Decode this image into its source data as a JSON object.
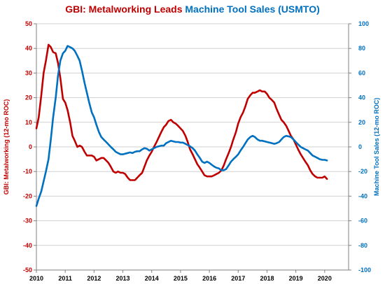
{
  "colors": {
    "left_series": "#C00000",
    "right_series": "#0070C0",
    "grid": "#d0d0d0",
    "axis": "#808080",
    "x_ticks": "#000000"
  },
  "chart_data": {
    "type": "line",
    "title_parts": [
      {
        "text": "GBI: Metalworking",
        "series": "left"
      },
      {
        "text": " Leads ",
        "series": "left"
      },
      {
        "text": "Machine Tool Sales (USMTO)",
        "series": "right"
      }
    ],
    "ylabel_left": "GBI: Metalworking (12-mo ROC)",
    "ylabel_right": "Machine Tool Sales (12-mo ROC)",
    "xlim": [
      2010,
      2020.83
    ],
    "x_ticks": [
      2010,
      2011,
      2012,
      2013,
      2014,
      2015,
      2016,
      2017,
      2018,
      2019,
      2020
    ],
    "ylim_left": [
      -50,
      50
    ],
    "y_ticks_left": [
      -50,
      -40,
      -30,
      -20,
      -10,
      0,
      10,
      20,
      30,
      40,
      50
    ],
    "ylim_right": [
      -100,
      100
    ],
    "y_ticks_right": [
      -100,
      -80,
      -60,
      -40,
      -20,
      0,
      20,
      40,
      60,
      80,
      100
    ],
    "grid": "horizontal",
    "series": [
      {
        "axis": "left",
        "points": [
          [
            2010.0,
            7.5
          ],
          [
            2010.08,
            12
          ],
          [
            2010.17,
            21
          ],
          [
            2010.25,
            30
          ],
          [
            2010.33,
            35
          ],
          [
            2010.42,
            41.5
          ],
          [
            2010.5,
            40.5
          ],
          [
            2010.58,
            38.5
          ],
          [
            2010.67,
            38
          ],
          [
            2010.75,
            34
          ],
          [
            2010.83,
            28
          ],
          [
            2010.92,
            19.5
          ],
          [
            2011.0,
            18
          ],
          [
            2011.08,
            15
          ],
          [
            2011.17,
            10
          ],
          [
            2011.25,
            4.5
          ],
          [
            2011.33,
            2.5
          ],
          [
            2011.42,
            0
          ],
          [
            2011.5,
            0.5
          ],
          [
            2011.58,
            0
          ],
          [
            2011.67,
            -2
          ],
          [
            2011.75,
            -3.5
          ],
          [
            2011.83,
            -3.5
          ],
          [
            2011.92,
            -3.5
          ],
          [
            2012.0,
            -4
          ],
          [
            2012.08,
            -5.5
          ],
          [
            2012.17,
            -5
          ],
          [
            2012.25,
            -4.5
          ],
          [
            2012.33,
            -4.5
          ],
          [
            2012.42,
            -5.5
          ],
          [
            2012.5,
            -6.5
          ],
          [
            2012.58,
            -8
          ],
          [
            2012.67,
            -10
          ],
          [
            2012.75,
            -10.5
          ],
          [
            2012.83,
            -10
          ],
          [
            2012.92,
            -10.5
          ],
          [
            2013.0,
            -10.5
          ],
          [
            2013.08,
            -11
          ],
          [
            2013.17,
            -12.5
          ],
          [
            2013.25,
            -13.5
          ],
          [
            2013.33,
            -13.5
          ],
          [
            2013.42,
            -13.5
          ],
          [
            2013.5,
            -12.5
          ],
          [
            2013.58,
            -11.5
          ],
          [
            2013.67,
            -10.5
          ],
          [
            2013.75,
            -8
          ],
          [
            2013.83,
            -5.5
          ],
          [
            2013.92,
            -3.5
          ],
          [
            2014.0,
            -2
          ],
          [
            2014.08,
            0
          ],
          [
            2014.17,
            2
          ],
          [
            2014.25,
            4
          ],
          [
            2014.33,
            6
          ],
          [
            2014.42,
            8
          ],
          [
            2014.5,
            9
          ],
          [
            2014.58,
            10.5
          ],
          [
            2014.67,
            11
          ],
          [
            2014.75,
            10
          ],
          [
            2014.83,
            9.5
          ],
          [
            2014.92,
            8.5
          ],
          [
            2015.0,
            7.5
          ],
          [
            2015.08,
            6.5
          ],
          [
            2015.17,
            4.5
          ],
          [
            2015.25,
            2
          ],
          [
            2015.33,
            -1
          ],
          [
            2015.42,
            -3
          ],
          [
            2015.5,
            -5
          ],
          [
            2015.58,
            -7
          ],
          [
            2015.67,
            -8.5
          ],
          [
            2015.75,
            -10
          ],
          [
            2015.83,
            -11.5
          ],
          [
            2015.92,
            -12
          ],
          [
            2016.0,
            -12
          ],
          [
            2016.08,
            -12
          ],
          [
            2016.17,
            -11.5
          ],
          [
            2016.25,
            -11
          ],
          [
            2016.33,
            -10.5
          ],
          [
            2016.42,
            -9.5
          ],
          [
            2016.5,
            -7.5
          ],
          [
            2016.58,
            -5
          ],
          [
            2016.67,
            -2.5
          ],
          [
            2016.75,
            0
          ],
          [
            2016.83,
            3
          ],
          [
            2016.92,
            6
          ],
          [
            2017.0,
            9.5
          ],
          [
            2017.08,
            12
          ],
          [
            2017.17,
            14
          ],
          [
            2017.25,
            16.5
          ],
          [
            2017.33,
            19.5
          ],
          [
            2017.42,
            21
          ],
          [
            2017.5,
            22
          ],
          [
            2017.58,
            22
          ],
          [
            2017.67,
            22.5
          ],
          [
            2017.75,
            23
          ],
          [
            2017.83,
            22.5
          ],
          [
            2017.92,
            22.5
          ],
          [
            2018.0,
            21.5
          ],
          [
            2018.08,
            20
          ],
          [
            2018.17,
            19
          ],
          [
            2018.25,
            18
          ],
          [
            2018.33,
            15.5
          ],
          [
            2018.42,
            13
          ],
          [
            2018.5,
            11
          ],
          [
            2018.58,
            10
          ],
          [
            2018.67,
            8.5
          ],
          [
            2018.75,
            6.5
          ],
          [
            2018.83,
            4.5
          ],
          [
            2018.92,
            3
          ],
          [
            2019.0,
            1
          ],
          [
            2019.08,
            -1
          ],
          [
            2019.17,
            -3
          ],
          [
            2019.25,
            -4.5
          ],
          [
            2019.33,
            -6
          ],
          [
            2019.42,
            -7.5
          ],
          [
            2019.5,
            -9.5
          ],
          [
            2019.58,
            -11
          ],
          [
            2019.67,
            -12
          ],
          [
            2019.75,
            -12.5
          ],
          [
            2019.83,
            -12.5
          ],
          [
            2019.92,
            -12.5
          ],
          [
            2020.0,
            -12
          ],
          [
            2020.08,
            -13
          ]
        ]
      },
      {
        "axis": "right",
        "points": [
          [
            2010.0,
            -48
          ],
          [
            2010.08,
            -42
          ],
          [
            2010.17,
            -36
          ],
          [
            2010.25,
            -28
          ],
          [
            2010.33,
            -20
          ],
          [
            2010.42,
            -10
          ],
          [
            2010.5,
            6
          ],
          [
            2010.58,
            24
          ],
          [
            2010.67,
            40
          ],
          [
            2010.75,
            58
          ],
          [
            2010.83,
            70
          ],
          [
            2010.92,
            76
          ],
          [
            2011.0,
            78
          ],
          [
            2011.08,
            82
          ],
          [
            2011.17,
            81
          ],
          [
            2011.25,
            80
          ],
          [
            2011.33,
            78
          ],
          [
            2011.42,
            74
          ],
          [
            2011.5,
            70
          ],
          [
            2011.58,
            62
          ],
          [
            2011.67,
            52
          ],
          [
            2011.75,
            44
          ],
          [
            2011.83,
            36
          ],
          [
            2011.92,
            28
          ],
          [
            2012.0,
            24
          ],
          [
            2012.08,
            18
          ],
          [
            2012.17,
            12
          ],
          [
            2012.25,
            8
          ],
          [
            2012.33,
            6
          ],
          [
            2012.42,
            4
          ],
          [
            2012.5,
            2
          ],
          [
            2012.58,
            0
          ],
          [
            2012.67,
            -2
          ],
          [
            2012.75,
            -4
          ],
          [
            2012.83,
            -5
          ],
          [
            2012.92,
            -6
          ],
          [
            2013.0,
            -6
          ],
          [
            2013.08,
            -5.5
          ],
          [
            2013.17,
            -5
          ],
          [
            2013.25,
            -4.5
          ],
          [
            2013.33,
            -5
          ],
          [
            2013.42,
            -4
          ],
          [
            2013.5,
            -3.5
          ],
          [
            2013.58,
            -3.5
          ],
          [
            2013.67,
            -2
          ],
          [
            2013.75,
            -1
          ],
          [
            2013.83,
            -1.5
          ],
          [
            2013.92,
            -3
          ],
          [
            2014.0,
            -2
          ],
          [
            2014.08,
            -1
          ],
          [
            2014.17,
            0
          ],
          [
            2014.25,
            0.5
          ],
          [
            2014.33,
            1
          ],
          [
            2014.42,
            1
          ],
          [
            2014.5,
            3
          ],
          [
            2014.58,
            4
          ],
          [
            2014.67,
            5
          ],
          [
            2014.75,
            4.5
          ],
          [
            2014.83,
            4
          ],
          [
            2014.92,
            4
          ],
          [
            2015.0,
            3.5
          ],
          [
            2015.08,
            3.5
          ],
          [
            2015.17,
            2.5
          ],
          [
            2015.25,
            1.5
          ],
          [
            2015.33,
            0.5
          ],
          [
            2015.42,
            -1
          ],
          [
            2015.5,
            -3
          ],
          [
            2015.58,
            -6
          ],
          [
            2015.67,
            -9
          ],
          [
            2015.75,
            -12
          ],
          [
            2015.83,
            -13
          ],
          [
            2015.92,
            -12
          ],
          [
            2016.0,
            -13
          ],
          [
            2016.08,
            -14.5
          ],
          [
            2016.17,
            -16
          ],
          [
            2016.25,
            -17
          ],
          [
            2016.33,
            -17.5
          ],
          [
            2016.42,
            -19
          ],
          [
            2016.5,
            -19
          ],
          [
            2016.58,
            -18
          ],
          [
            2016.67,
            -15
          ],
          [
            2016.75,
            -12
          ],
          [
            2016.83,
            -10
          ],
          [
            2016.92,
            -8
          ],
          [
            2017.0,
            -6
          ],
          [
            2017.08,
            -3
          ],
          [
            2017.17,
            0
          ],
          [
            2017.25,
            3
          ],
          [
            2017.33,
            6
          ],
          [
            2017.42,
            8
          ],
          [
            2017.5,
            9
          ],
          [
            2017.58,
            8
          ],
          [
            2017.67,
            6
          ],
          [
            2017.75,
            5
          ],
          [
            2017.83,
            5
          ],
          [
            2017.92,
            4.5
          ],
          [
            2018.0,
            4
          ],
          [
            2018.08,
            3.5
          ],
          [
            2018.17,
            3
          ],
          [
            2018.25,
            2.5
          ],
          [
            2018.33,
            3
          ],
          [
            2018.42,
            4
          ],
          [
            2018.5,
            6
          ],
          [
            2018.58,
            8
          ],
          [
            2018.67,
            9
          ],
          [
            2018.75,
            8.5
          ],
          [
            2018.83,
            8
          ],
          [
            2018.92,
            6
          ],
          [
            2019.0,
            4
          ],
          [
            2019.08,
            2
          ],
          [
            2019.17,
            0
          ],
          [
            2019.25,
            -1
          ],
          [
            2019.33,
            -2
          ],
          [
            2019.42,
            -3
          ],
          [
            2019.5,
            -5
          ],
          [
            2019.58,
            -7
          ],
          [
            2019.67,
            -8
          ],
          [
            2019.75,
            -9
          ],
          [
            2019.83,
            -10
          ],
          [
            2019.92,
            -10.5
          ],
          [
            2020.0,
            -10.5
          ],
          [
            2020.08,
            -11
          ]
        ]
      }
    ]
  }
}
